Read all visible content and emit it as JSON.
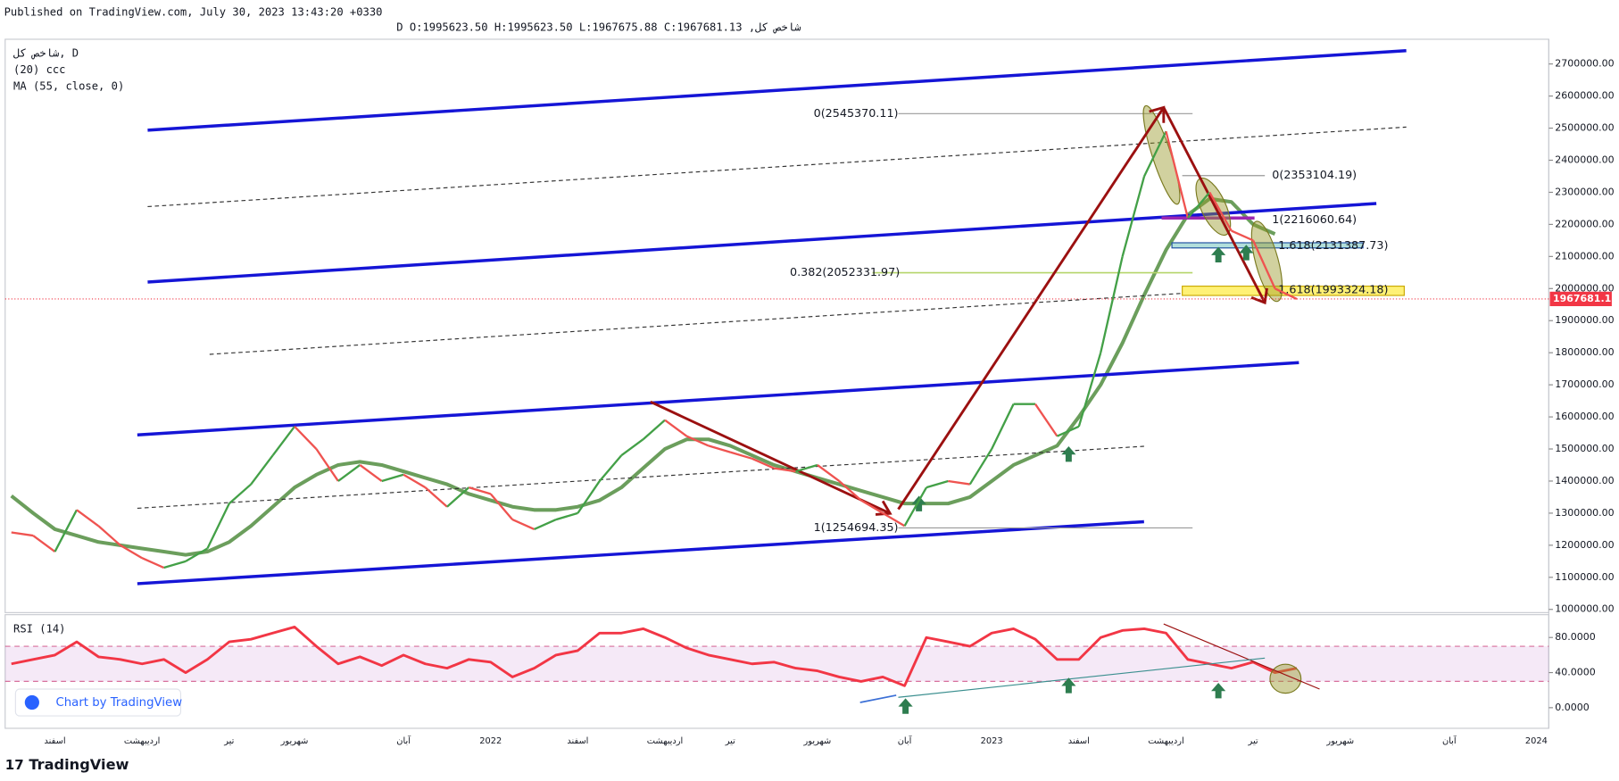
{
  "header": {
    "published": "Published on TradingView.com, July 30, 2023 13:43:20 +0330",
    "symbol_line": "شاخص کل, D O:1995623.50 H:1995623.50 L:1967675.88 C:1967681.13"
  },
  "legend": {
    "indicator": "(20) ccc"
  },
  "footer": {
    "brand": "TradingView",
    "badge": "Chart by TradingView"
  },
  "chart_data": [
    {
      "type": "line",
      "categories": [
        null,
        null,
        "اسفند",
        null,
        null,
        null,
        "اردیبهشت",
        null,
        null,
        null,
        "تیر",
        null,
        null,
        "شهریور",
        null,
        null,
        null,
        null,
        "آبان",
        null,
        null,
        null,
        "2022",
        null,
        null,
        null,
        "اسفند",
        null,
        null,
        null,
        "اردیبهشت",
        null,
        null,
        "تیر",
        null,
        null,
        null,
        "شهریور",
        null,
        null,
        null,
        "آبان",
        null,
        null,
        null,
        "2023",
        null,
        null,
        null,
        "اسفند",
        null,
        null,
        null,
        "اردیبهشت",
        null,
        null,
        null,
        "تیر",
        null,
        null,
        null,
        "شهریور",
        null,
        null,
        null,
        null,
        "آبان",
        null,
        null,
        null,
        "2024",
        null
      ],
      "series": [
        {
          "name": "شاخص کل, D",
          "color": "#ef5350",
          "up_color": "#43a047",
          "values": [
            1240000,
            1230000,
            1180000,
            1310000,
            1260000,
            1200000,
            1160000,
            1130000,
            1150000,
            1190000,
            1330000,
            1390000,
            1480000,
            1570000,
            1500000,
            1400000,
            1450000,
            1400000,
            1420000,
            1380000,
            1320000,
            1380000,
            1360000,
            1280000,
            1250000,
            1280000,
            1300000,
            1400000,
            1480000,
            1530000,
            1590000,
            1540000,
            1510000,
            1490000,
            1470000,
            1440000,
            1430000,
            1450000,
            1400000,
            1340000,
            1300000,
            1260000,
            1380000,
            1400000,
            1390000,
            1500000,
            1640000,
            1640000,
            1540000,
            1570000,
            1800000,
            2100000,
            2350000,
            2490000,
            2220000,
            2300000,
            2180000,
            2150000,
            2000000,
            1967681.13,
            null,
            null,
            null,
            null,
            null,
            null,
            null,
            null,
            null,
            null,
            null,
            null
          ]
        },
        {
          "name": "MA (55, close, 0)",
          "color": "#6b9e5c",
          "values": [
            1354000,
            1300000,
            1250000,
            1230000,
            1210000,
            1200000,
            1190000,
            1180000,
            1170000,
            1180000,
            1210000,
            1260000,
            1320000,
            1380000,
            1420000,
            1450000,
            1460000,
            1450000,
            1430000,
            1410000,
            1390000,
            1360000,
            1340000,
            1320000,
            1310000,
            1310000,
            1320000,
            1340000,
            1380000,
            1440000,
            1500000,
            1530000,
            1530000,
            1510000,
            1480000,
            1450000,
            1430000,
            1410000,
            1390000,
            1370000,
            1350000,
            1330000,
            1330000,
            1330000,
            1350000,
            1400000,
            1450000,
            1480000,
            1510000,
            1600000,
            1700000,
            1830000,
            1980000,
            2120000,
            2230000,
            2280000,
            2270000,
            2200000,
            2170000,
            null,
            null,
            null,
            null,
            null,
            null,
            null,
            null,
            null,
            null,
            null,
            null,
            null
          ]
        }
      ],
      "ylim": [
        990000,
        2777000
      ],
      "yticks": [
        {
          "value": 1000000,
          "label": "1000000.00"
        },
        {
          "value": 1100000,
          "label": "1100000.00"
        },
        {
          "value": 1200000,
          "label": "1200000.00"
        },
        {
          "value": 1300000,
          "label": "1300000.00"
        },
        {
          "value": 1400000,
          "label": "1400000.00"
        },
        {
          "value": 1500000,
          "label": "1500000.00"
        },
        {
          "value": 1600000,
          "label": "1600000.00"
        },
        {
          "value": 1700000,
          "label": "1700000.00"
        },
        {
          "value": 1800000,
          "label": "1800000.00"
        },
        {
          "value": 1900000,
          "label": "1900000.00"
        },
        {
          "value": 2000000,
          "label": "2000000.00"
        },
        {
          "value": 2100000,
          "label": "2100000.00"
        },
        {
          "value": 2200000,
          "label": "2200000.00"
        },
        {
          "value": 2300000,
          "label": "2300000.00"
        },
        {
          "value": 2400000,
          "label": "2400000.00"
        },
        {
          "value": 2500000,
          "label": "2500000.00"
        },
        {
          "value": 2600000,
          "label": "2600000.00"
        },
        {
          "value": 2700000,
          "label": "2700000.00"
        }
      ],
      "last_price": {
        "value": 1967681.13,
        "label": "1967681.13",
        "color": "#f23645"
      },
      "annotations": [
        {
          "text": "0(2545370.11)"
        },
        {
          "text": "0(2353104.19)"
        },
        {
          "text": "1(2216060.64)"
        },
        {
          "text": "1.618(2131387.73)"
        },
        {
          "text": "0.382(2052331.97)"
        },
        {
          "text": "1.618(1993324.18)"
        },
        {
          "text": "1(1254694.35)"
        }
      ],
      "grid": false
    },
    {
      "type": "line",
      "title": "RSI (14)",
      "series": [
        {
          "name": "RSI",
          "color": "#f23645",
          "values": [
            50,
            55,
            60,
            75,
            58,
            55,
            50,
            55,
            40,
            55,
            75,
            78,
            85,
            92,
            70,
            50,
            58,
            48,
            60,
            50,
            45,
            55,
            52,
            35,
            45,
            60,
            65,
            85,
            85,
            90,
            80,
            68,
            60,
            55,
            50,
            52,
            45,
            42,
            35,
            30,
            35,
            25,
            80,
            75,
            70,
            85,
            90,
            78,
            55,
            55,
            80,
            88,
            90,
            85,
            55,
            50,
            45,
            52,
            40,
            45,
            null,
            null,
            null,
            null,
            null,
            null,
            null,
            null,
            null,
            null,
            null,
            null
          ]
        }
      ],
      "band": [
        30,
        70
      ],
      "ylim": [
        -23.5,
        106
      ],
      "yticks": [
        {
          "value": 0,
          "label": "0.0000"
        },
        {
          "value": 40,
          "label": "40.0000"
        },
        {
          "value": 80,
          "label": "80.0000"
        }
      ],
      "grid": false
    }
  ]
}
